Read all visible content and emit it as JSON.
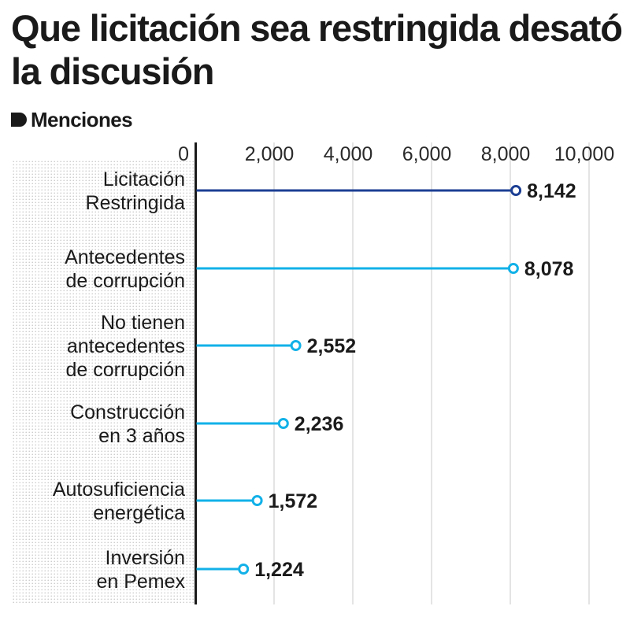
{
  "header": {
    "title": "Que licitación sea restringida desató la discusión",
    "legend_label": "Menciones"
  },
  "colors": {
    "highlight": "#1c3f94",
    "series": "#12b1e8",
    "text": "#1a1a1a",
    "grid": "#c8c8c8"
  },
  "chart_data": {
    "type": "bar",
    "orientation": "horizontal",
    "style": "lollipop",
    "legend": "top-left",
    "grid": true,
    "xlim": [
      0,
      10000
    ],
    "x_ticks": [
      {
        "value": 0,
        "label": "0"
      },
      {
        "value": 2000,
        "label": "2,000"
      },
      {
        "value": 4000,
        "label": "4,000"
      },
      {
        "value": 6000,
        "label": "6,000"
      },
      {
        "value": 8000,
        "label": "8,000"
      },
      {
        "value": 10000,
        "label": "10,000"
      }
    ],
    "series": [
      {
        "name": "Menciones",
        "points": [
          {
            "category": [
              "Licitación",
              "Restringida"
            ],
            "value": 8142,
            "label": "8,142",
            "highlight": true
          },
          {
            "category": [
              "Antecedentes",
              "de corrupción"
            ],
            "value": 8078,
            "label": "8,078",
            "highlight": false
          },
          {
            "category": [
              "No tienen",
              "antecedentes",
              "de corrupción"
            ],
            "value": 2552,
            "label": "2,552",
            "highlight": false
          },
          {
            "category": [
              "Construcción",
              "en 3 años"
            ],
            "value": 2236,
            "label": "2,236",
            "highlight": false
          },
          {
            "category": [
              "Autosuficiencia",
              "energética"
            ],
            "value": 1572,
            "label": "1,572",
            "highlight": false
          },
          {
            "category": [
              "Inversión",
              "en Pemex"
            ],
            "value": 1224,
            "label": "1,224",
            "highlight": false
          }
        ]
      }
    ]
  }
}
